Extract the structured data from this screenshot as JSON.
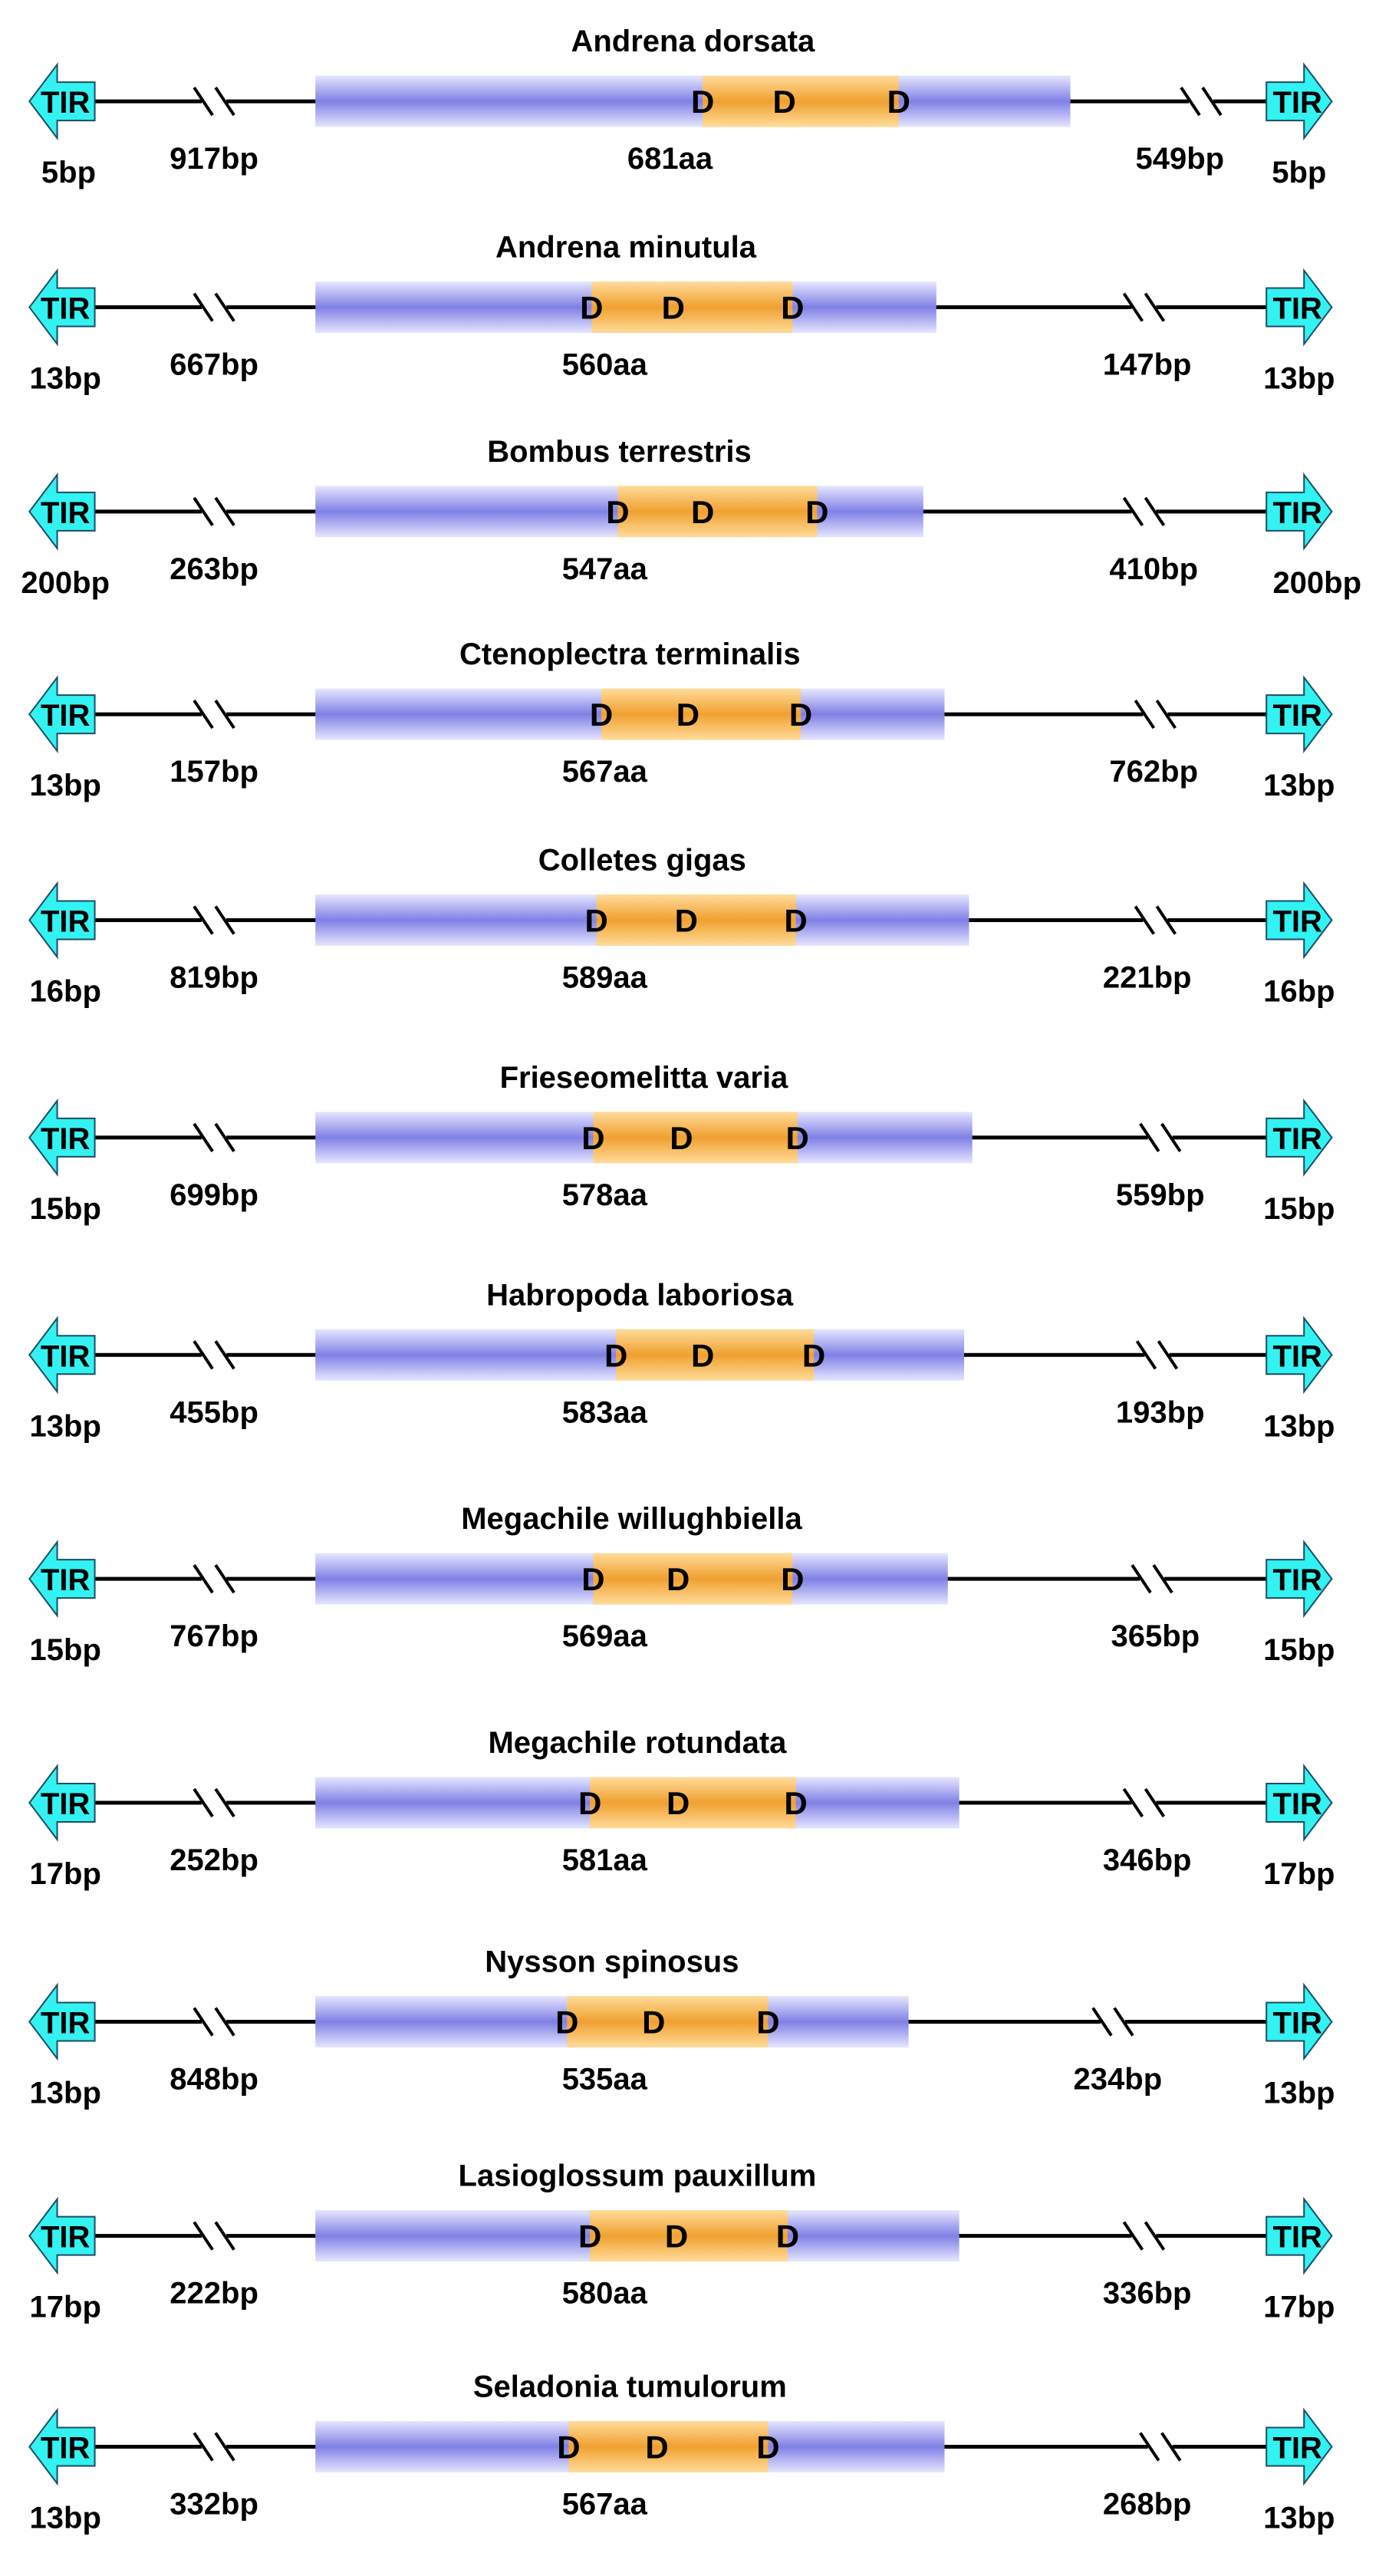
{
  "tir_label": "TIR",
  "domain_letter": "D",
  "colors": {
    "tir_fill": "#33f2f2",
    "tir_stroke": "#1a4d66",
    "orf_light": "#e6e6ff",
    "orf_dark": "#8080e6",
    "domain_light": "#ffdc9a",
    "domain_dark": "#f0a030",
    "line": "#000000",
    "text": "#000000"
  },
  "elements": [
    {
      "species": "Andrena dorsata",
      "tir_left": "5bp",
      "utr5": "917bp",
      "orf": "681aa",
      "utr3": "549bp",
      "tir_right": "5bp"
    },
    {
      "species": "Andrena minutula",
      "tir_left": "13bp",
      "utr5": "667bp",
      "orf": "560aa",
      "utr3": "147bp",
      "tir_right": "13bp"
    },
    {
      "species": "Bombus terrestris",
      "tir_left": "200bp",
      "utr5": "263bp",
      "orf": "547aa",
      "utr3": "410bp",
      "tir_right": "200bp"
    },
    {
      "species": "Ctenoplectra terminalis",
      "tir_left": "13bp",
      "utr5": "157bp",
      "orf": "567aa",
      "utr3": "762bp",
      "tir_right": "13bp"
    },
    {
      "species": "Colletes gigas",
      "tir_left": "16bp",
      "utr5": "819bp",
      "orf": "589aa",
      "utr3": "221bp",
      "tir_right": "16bp"
    },
    {
      "species": "Frieseomelitta varia",
      "tir_left": "15bp",
      "utr5": "699bp",
      "orf": "578aa",
      "utr3": "559bp",
      "tir_right": "15bp"
    },
    {
      "species": "Habropoda laboriosa",
      "tir_left": "13bp",
      "utr5": "455bp",
      "orf": "583aa",
      "utr3": "193bp",
      "tir_right": "13bp"
    },
    {
      "species": "Megachile willughbiella",
      "tir_left": "15bp",
      "utr5": "767bp",
      "orf": "569aa",
      "utr3": "365bp",
      "tir_right": "15bp"
    },
    {
      "species": "Megachile rotundata",
      "tir_left": "17bp",
      "utr5": "252bp",
      "orf": "581aa",
      "utr3": "346bp",
      "tir_right": "17bp"
    },
    {
      "species": "Nysson spinosus",
      "tir_left": "13bp",
      "utr5": "848bp",
      "orf": "535aa",
      "utr3": "234bp",
      "tir_right": "13bp"
    },
    {
      "species": "Lasioglossum pauxillum",
      "tir_left": "17bp",
      "utr5": "222bp",
      "orf": "580aa",
      "utr3": "336bp",
      "tir_right": "17bp"
    },
    {
      "species": "Seladonia tumulorum",
      "tir_left": "13bp",
      "utr5": "332bp",
      "orf": "567aa",
      "utr3": "268bp",
      "tir_right": "13bp"
    }
  ]
}
